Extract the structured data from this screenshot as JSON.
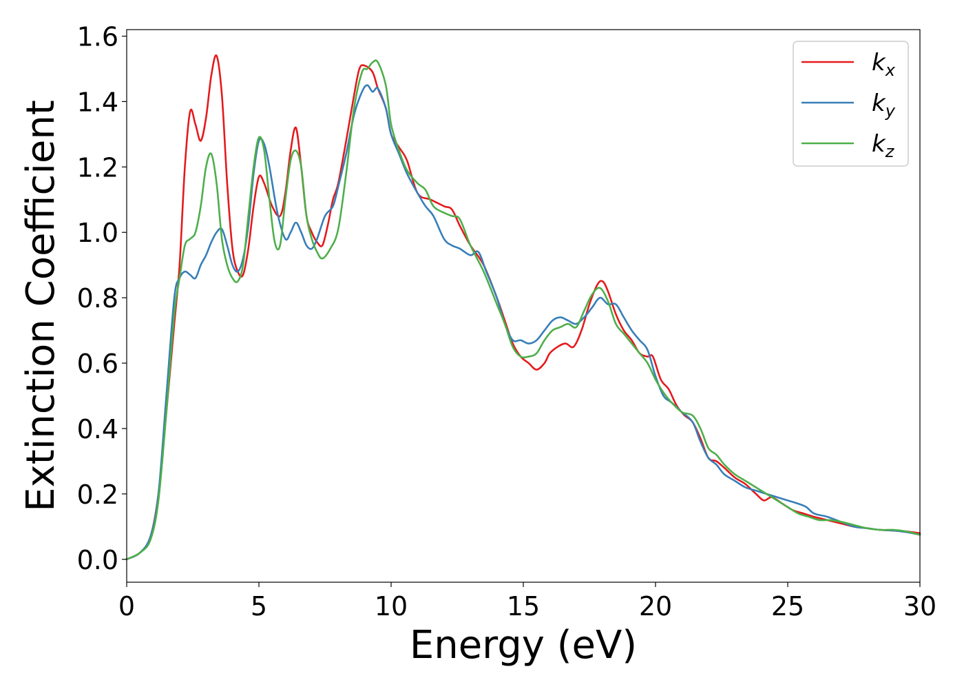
{
  "chart_data": {
    "type": "line",
    "title": "",
    "xlabel": "Energy (eV)",
    "ylabel": "Extinction Coefficient",
    "xlim": [
      0,
      30
    ],
    "ylim": [
      -0.07,
      1.62
    ],
    "xticks": [
      0,
      5,
      10,
      15,
      20,
      25,
      30
    ],
    "xtick_labels": [
      "0",
      "5",
      "10",
      "15",
      "20",
      "25",
      "30"
    ],
    "yticks": [
      0.0,
      0.2,
      0.4,
      0.6,
      0.8,
      1.0,
      1.2,
      1.4,
      1.6
    ],
    "ytick_labels": [
      "0.0",
      "0.2",
      "0.4",
      "0.6",
      "0.8",
      "1.0",
      "1.2",
      "1.4",
      "1.6"
    ],
    "grid": false,
    "legend_position": "top-right",
    "series": [
      {
        "name": "k",
        "name_subscript": "x",
        "color": "#e41a1c",
        "points": [
          [
            0,
            0
          ],
          [
            0.5,
            0.02
          ],
          [
            0.9,
            0.07
          ],
          [
            1.2,
            0.2
          ],
          [
            1.5,
            0.45
          ],
          [
            1.8,
            0.72
          ],
          [
            2.0,
            0.9
          ],
          [
            2.2,
            1.2
          ],
          [
            2.4,
            1.37
          ],
          [
            2.6,
            1.33
          ],
          [
            2.8,
            1.28
          ],
          [
            3.0,
            1.35
          ],
          [
            3.2,
            1.48
          ],
          [
            3.4,
            1.54
          ],
          [
            3.6,
            1.42
          ],
          [
            3.8,
            1.15
          ],
          [
            4.0,
            0.95
          ],
          [
            4.2,
            0.88
          ],
          [
            4.4,
            0.87
          ],
          [
            4.6,
            0.95
          ],
          [
            4.8,
            1.08
          ],
          [
            5.0,
            1.17
          ],
          [
            5.2,
            1.15
          ],
          [
            5.5,
            1.08
          ],
          [
            5.8,
            1.05
          ],
          [
            6.0,
            1.12
          ],
          [
            6.2,
            1.25
          ],
          [
            6.4,
            1.32
          ],
          [
            6.6,
            1.2
          ],
          [
            6.8,
            1.05
          ],
          [
            7.0,
            1.0
          ],
          [
            7.2,
            0.97
          ],
          [
            7.4,
            0.96
          ],
          [
            7.6,
            1.02
          ],
          [
            7.8,
            1.1
          ],
          [
            8.0,
            1.15
          ],
          [
            8.3,
            1.28
          ],
          [
            8.6,
            1.42
          ],
          [
            8.8,
            1.5
          ],
          [
            9.0,
            1.51
          ],
          [
            9.3,
            1.49
          ],
          [
            9.5,
            1.44
          ],
          [
            9.8,
            1.38
          ],
          [
            10.0,
            1.3
          ],
          [
            10.3,
            1.26
          ],
          [
            10.6,
            1.22
          ],
          [
            11.0,
            1.12
          ],
          [
            11.5,
            1.1
          ],
          [
            12.0,
            1.08
          ],
          [
            12.3,
            1.07
          ],
          [
            12.6,
            1.02
          ],
          [
            13.0,
            0.96
          ],
          [
            13.5,
            0.9
          ],
          [
            14.0,
            0.8
          ],
          [
            14.3,
            0.73
          ],
          [
            14.6,
            0.66
          ],
          [
            14.9,
            0.62
          ],
          [
            15.2,
            0.6
          ],
          [
            15.5,
            0.58
          ],
          [
            15.8,
            0.6
          ],
          [
            16.0,
            0.63
          ],
          [
            16.3,
            0.65
          ],
          [
            16.6,
            0.66
          ],
          [
            16.9,
            0.65
          ],
          [
            17.2,
            0.7
          ],
          [
            17.5,
            0.78
          ],
          [
            17.8,
            0.84
          ],
          [
            18.0,
            0.85
          ],
          [
            18.2,
            0.82
          ],
          [
            18.5,
            0.75
          ],
          [
            18.8,
            0.7
          ],
          [
            19.1,
            0.67
          ],
          [
            19.4,
            0.63
          ],
          [
            19.7,
            0.62
          ],
          [
            19.9,
            0.62
          ],
          [
            20.2,
            0.55
          ],
          [
            20.5,
            0.52
          ],
          [
            20.8,
            0.47
          ],
          [
            21.1,
            0.44
          ],
          [
            21.4,
            0.42
          ],
          [
            21.7,
            0.37
          ],
          [
            22.0,
            0.31
          ],
          [
            22.3,
            0.3
          ],
          [
            22.6,
            0.28
          ],
          [
            23.0,
            0.25
          ],
          [
            23.4,
            0.23
          ],
          [
            23.8,
            0.2
          ],
          [
            24.1,
            0.18
          ],
          [
            24.4,
            0.19
          ],
          [
            24.8,
            0.17
          ],
          [
            25.2,
            0.15
          ],
          [
            25.6,
            0.14
          ],
          [
            26.0,
            0.13
          ],
          [
            26.5,
            0.12
          ],
          [
            27.0,
            0.11
          ],
          [
            27.5,
            0.1
          ],
          [
            28.0,
            0.095
          ],
          [
            28.5,
            0.09
          ],
          [
            29.0,
            0.088
          ],
          [
            29.5,
            0.085
          ],
          [
            30,
            0.08
          ]
        ]
      },
      {
        "name": "k",
        "name_subscript": "y",
        "color": "#377eb8",
        "points": [
          [
            0,
            0
          ],
          [
            0.5,
            0.02
          ],
          [
            0.9,
            0.07
          ],
          [
            1.2,
            0.2
          ],
          [
            1.5,
            0.5
          ],
          [
            1.8,
            0.8
          ],
          [
            2.0,
            0.86
          ],
          [
            2.2,
            0.88
          ],
          [
            2.4,
            0.87
          ],
          [
            2.6,
            0.86
          ],
          [
            2.8,
            0.9
          ],
          [
            3.0,
            0.93
          ],
          [
            3.2,
            0.97
          ],
          [
            3.4,
            1.0
          ],
          [
            3.6,
            1.01
          ],
          [
            3.8,
            0.96
          ],
          [
            4.0,
            0.9
          ],
          [
            4.2,
            0.88
          ],
          [
            4.4,
            0.92
          ],
          [
            4.6,
            1.02
          ],
          [
            4.8,
            1.18
          ],
          [
            5.0,
            1.28
          ],
          [
            5.2,
            1.27
          ],
          [
            5.4,
            1.2
          ],
          [
            5.7,
            1.06
          ],
          [
            6.0,
            0.98
          ],
          [
            6.2,
            1.0
          ],
          [
            6.4,
            1.03
          ],
          [
            6.6,
            1.0
          ],
          [
            6.8,
            0.96
          ],
          [
            7.0,
            0.95
          ],
          [
            7.2,
            0.98
          ],
          [
            7.5,
            1.05
          ],
          [
            7.8,
            1.08
          ],
          [
            8.0,
            1.14
          ],
          [
            8.3,
            1.24
          ],
          [
            8.6,
            1.36
          ],
          [
            8.9,
            1.43
          ],
          [
            9.1,
            1.45
          ],
          [
            9.3,
            1.43
          ],
          [
            9.5,
            1.44
          ],
          [
            9.8,
            1.38
          ],
          [
            10.0,
            1.3
          ],
          [
            10.3,
            1.24
          ],
          [
            10.6,
            1.18
          ],
          [
            11.0,
            1.12
          ],
          [
            11.3,
            1.08
          ],
          [
            11.6,
            1.05
          ],
          [
            12.0,
            0.98
          ],
          [
            12.3,
            0.96
          ],
          [
            12.6,
            0.95
          ],
          [
            13.0,
            0.93
          ],
          [
            13.3,
            0.94
          ],
          [
            13.6,
            0.88
          ],
          [
            14.0,
            0.8
          ],
          [
            14.3,
            0.72
          ],
          [
            14.6,
            0.67
          ],
          [
            14.9,
            0.67
          ],
          [
            15.2,
            0.66
          ],
          [
            15.5,
            0.67
          ],
          [
            15.8,
            0.7
          ],
          [
            16.1,
            0.73
          ],
          [
            16.4,
            0.74
          ],
          [
            16.7,
            0.73
          ],
          [
            17.0,
            0.72
          ],
          [
            17.3,
            0.74
          ],
          [
            17.6,
            0.77
          ],
          [
            17.9,
            0.8
          ],
          [
            18.2,
            0.78
          ],
          [
            18.5,
            0.78
          ],
          [
            18.8,
            0.74
          ],
          [
            19.1,
            0.7
          ],
          [
            19.4,
            0.67
          ],
          [
            19.7,
            0.64
          ],
          [
            20.0,
            0.56
          ],
          [
            20.3,
            0.5
          ],
          [
            20.6,
            0.48
          ],
          [
            21.0,
            0.45
          ],
          [
            21.4,
            0.42
          ],
          [
            21.7,
            0.36
          ],
          [
            22.0,
            0.31
          ],
          [
            22.3,
            0.29
          ],
          [
            22.6,
            0.26
          ],
          [
            23.0,
            0.24
          ],
          [
            23.4,
            0.22
          ],
          [
            23.8,
            0.21
          ],
          [
            24.2,
            0.2
          ],
          [
            24.6,
            0.19
          ],
          [
            25.0,
            0.18
          ],
          [
            25.4,
            0.17
          ],
          [
            25.7,
            0.16
          ],
          [
            26.0,
            0.14
          ],
          [
            26.5,
            0.13
          ],
          [
            27.0,
            0.115
          ],
          [
            27.5,
            0.1
          ],
          [
            28.0,
            0.095
          ],
          [
            28.5,
            0.09
          ],
          [
            29.0,
            0.088
          ],
          [
            29.5,
            0.083
          ],
          [
            30,
            0.075
          ]
        ]
      },
      {
        "name": "k",
        "name_subscript": "z",
        "color": "#4daf4a",
        "points": [
          [
            0,
            0
          ],
          [
            0.5,
            0.02
          ],
          [
            0.9,
            0.06
          ],
          [
            1.2,
            0.18
          ],
          [
            1.5,
            0.45
          ],
          [
            1.8,
            0.75
          ],
          [
            2.0,
            0.86
          ],
          [
            2.2,
            0.96
          ],
          [
            2.4,
            0.98
          ],
          [
            2.6,
            1.0
          ],
          [
            2.8,
            1.08
          ],
          [
            3.0,
            1.2
          ],
          [
            3.2,
            1.24
          ],
          [
            3.4,
            1.15
          ],
          [
            3.6,
            0.98
          ],
          [
            3.8,
            0.9
          ],
          [
            4.0,
            0.86
          ],
          [
            4.2,
            0.85
          ],
          [
            4.4,
            0.9
          ],
          [
            4.6,
            1.05
          ],
          [
            4.8,
            1.2
          ],
          [
            5.0,
            1.29
          ],
          [
            5.2,
            1.25
          ],
          [
            5.4,
            1.1
          ],
          [
            5.6,
            0.97
          ],
          [
            5.8,
            0.96
          ],
          [
            6.0,
            1.1
          ],
          [
            6.2,
            1.22
          ],
          [
            6.4,
            1.25
          ],
          [
            6.6,
            1.2
          ],
          [
            6.8,
            1.05
          ],
          [
            7.0,
            0.98
          ],
          [
            7.2,
            0.94
          ],
          [
            7.4,
            0.92
          ],
          [
            7.7,
            0.95
          ],
          [
            8.0,
            1.01
          ],
          [
            8.3,
            1.18
          ],
          [
            8.6,
            1.38
          ],
          [
            8.9,
            1.49
          ],
          [
            9.1,
            1.5
          ],
          [
            9.3,
            1.52
          ],
          [
            9.5,
            1.52
          ],
          [
            9.8,
            1.45
          ],
          [
            10.0,
            1.33
          ],
          [
            10.3,
            1.25
          ],
          [
            10.6,
            1.19
          ],
          [
            11.0,
            1.15
          ],
          [
            11.3,
            1.13
          ],
          [
            11.6,
            1.08
          ],
          [
            12.0,
            1.06
          ],
          [
            12.3,
            1.05
          ],
          [
            12.6,
            1.04
          ],
          [
            13.0,
            0.96
          ],
          [
            13.5,
            0.88
          ],
          [
            14.0,
            0.78
          ],
          [
            14.3,
            0.72
          ],
          [
            14.6,
            0.65
          ],
          [
            14.9,
            0.62
          ],
          [
            15.2,
            0.62
          ],
          [
            15.5,
            0.63
          ],
          [
            15.8,
            0.67
          ],
          [
            16.1,
            0.7
          ],
          [
            16.4,
            0.71
          ],
          [
            16.7,
            0.72
          ],
          [
            17.0,
            0.71
          ],
          [
            17.3,
            0.76
          ],
          [
            17.6,
            0.81
          ],
          [
            17.9,
            0.83
          ],
          [
            18.2,
            0.79
          ],
          [
            18.5,
            0.72
          ],
          [
            18.8,
            0.69
          ],
          [
            19.1,
            0.66
          ],
          [
            19.4,
            0.63
          ],
          [
            19.7,
            0.6
          ],
          [
            20.0,
            0.55
          ],
          [
            20.3,
            0.51
          ],
          [
            20.6,
            0.48
          ],
          [
            21.0,
            0.45
          ],
          [
            21.4,
            0.44
          ],
          [
            21.7,
            0.4
          ],
          [
            22.0,
            0.34
          ],
          [
            22.3,
            0.32
          ],
          [
            22.6,
            0.29
          ],
          [
            23.0,
            0.26
          ],
          [
            23.4,
            0.24
          ],
          [
            23.8,
            0.22
          ],
          [
            24.2,
            0.2
          ],
          [
            24.6,
            0.18
          ],
          [
            25.0,
            0.16
          ],
          [
            25.4,
            0.14
          ],
          [
            25.8,
            0.13
          ],
          [
            26.2,
            0.12
          ],
          [
            26.6,
            0.12
          ],
          [
            27.0,
            0.115
          ],
          [
            27.5,
            0.105
          ],
          [
            28.0,
            0.095
          ],
          [
            28.5,
            0.09
          ],
          [
            29.0,
            0.09
          ],
          [
            29.5,
            0.085
          ],
          [
            30,
            0.075
          ]
        ]
      }
    ]
  }
}
